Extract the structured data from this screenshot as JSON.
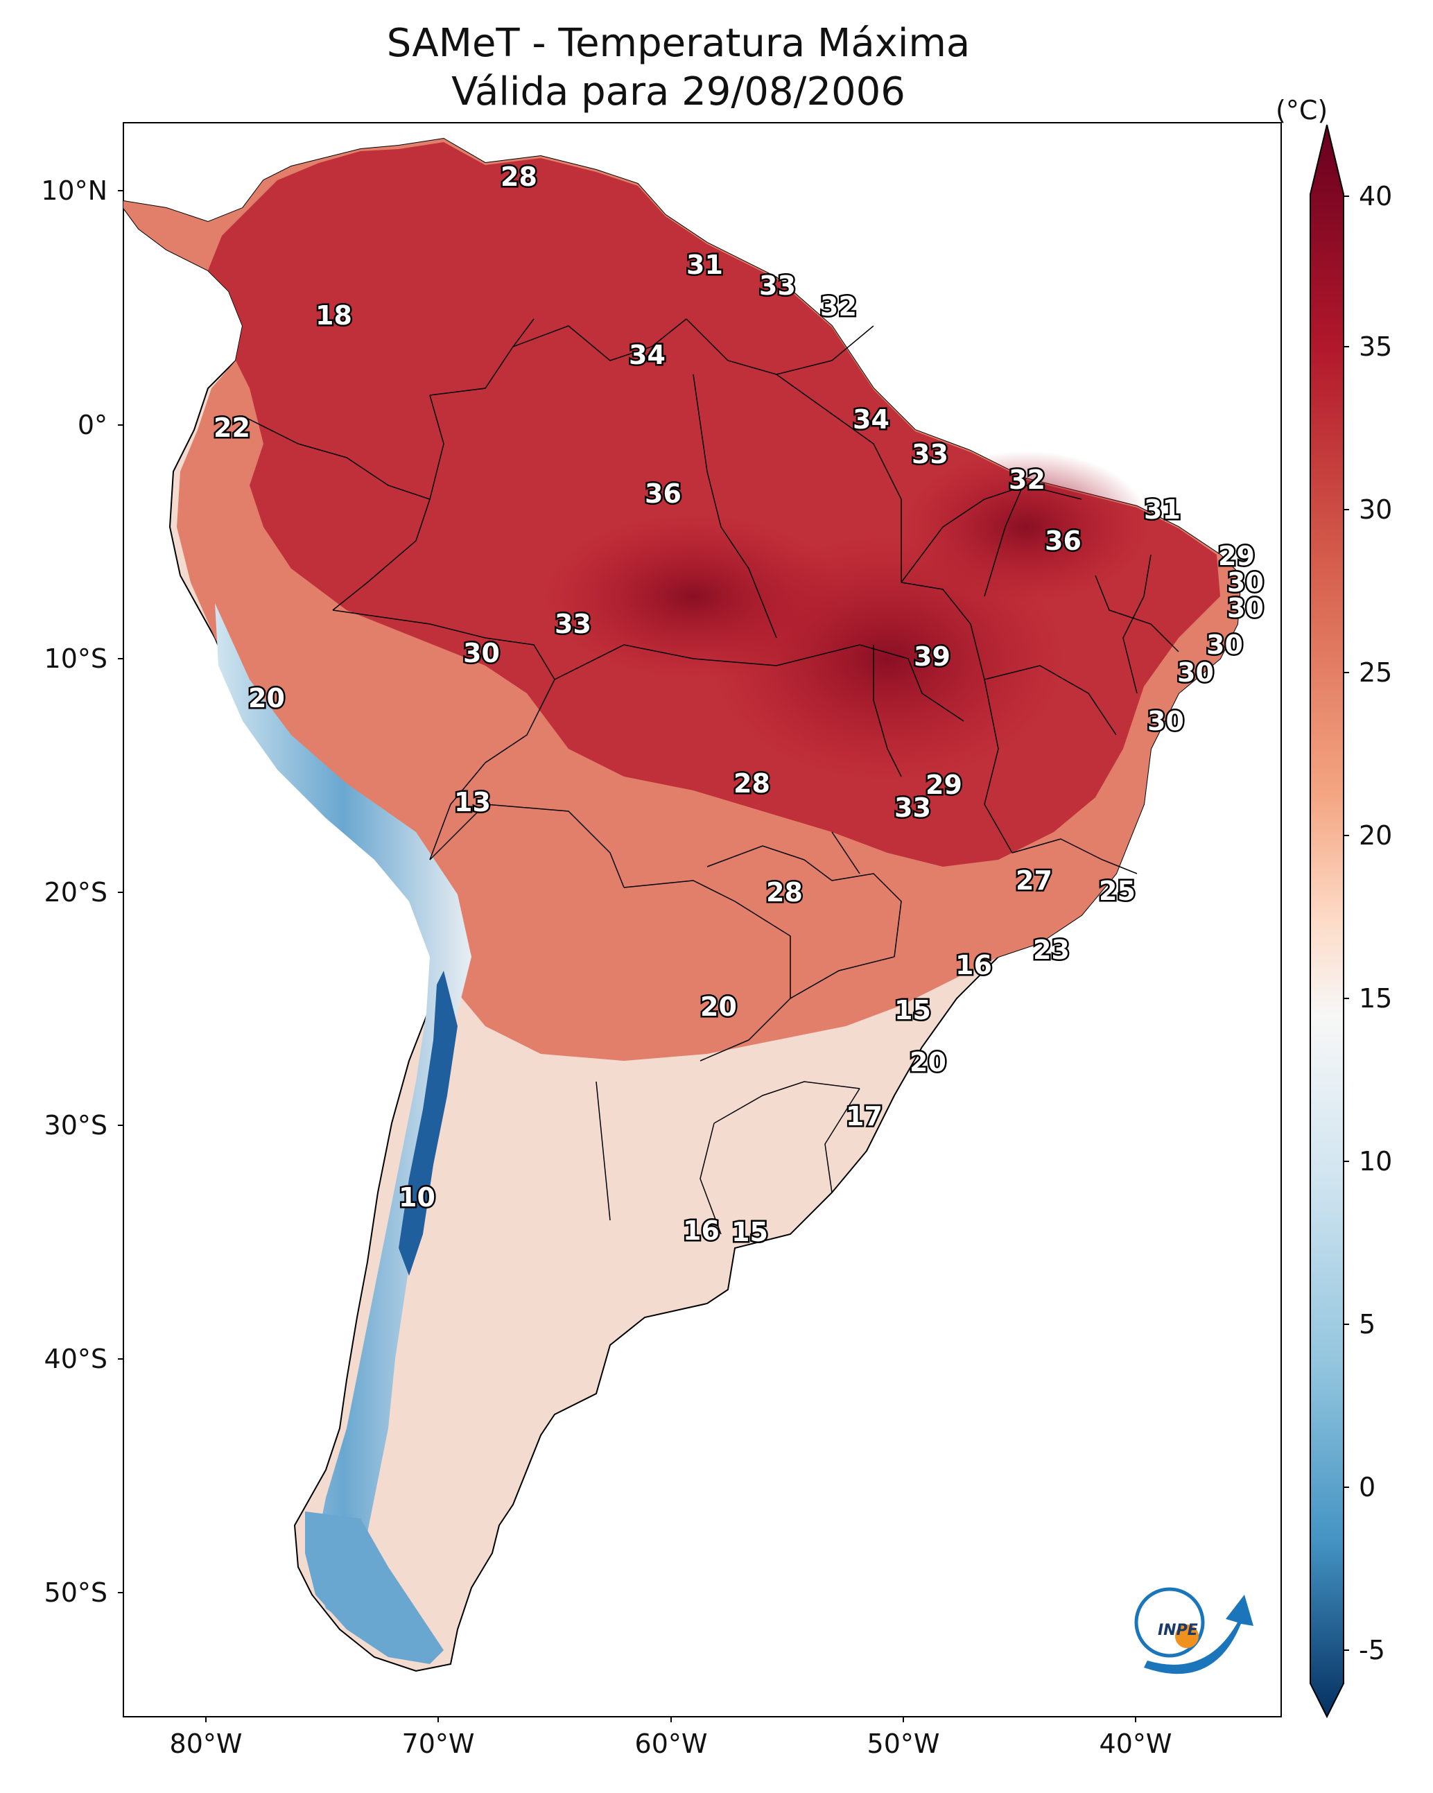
{
  "title": {
    "line1": "SAMeT - Temperatura Máxima",
    "line2": "Válida para 29/08/2006"
  },
  "colorbar": {
    "unit": "(°C)",
    "ticks": [
      "40",
      "35",
      "30",
      "25",
      "20",
      "15",
      "10",
      "5",
      "0",
      "-5"
    ],
    "range": [
      -5,
      40
    ],
    "colors": {
      "hot": "#67001f",
      "warm": "#c2373d",
      "mild": "#f4a582",
      "neutral": "#f7f7f7",
      "cool": "#92c5de",
      "cold": "#053061"
    }
  },
  "axes": {
    "lat_labels": [
      "10°N",
      "0°",
      "10°S",
      "20°S",
      "30°S",
      "40°S",
      "50°S"
    ],
    "lon_labels": [
      "80°W",
      "70°W",
      "60°W",
      "50°W",
      "40°W"
    ]
  },
  "labels": [
    "28",
    "31",
    "33",
    "32",
    "18",
    "34",
    "22",
    "34",
    "33",
    "36",
    "32",
    "31",
    "36",
    "29",
    "30",
    "30",
    "33",
    "30",
    "30",
    "39",
    "20",
    "30",
    "30",
    "28",
    "29",
    "33",
    "13",
    "27",
    "25",
    "28",
    "23",
    "16",
    "20",
    "15",
    "20",
    "17",
    "10",
    "16",
    "15"
  ],
  "logo": {
    "text": "INPE"
  }
}
